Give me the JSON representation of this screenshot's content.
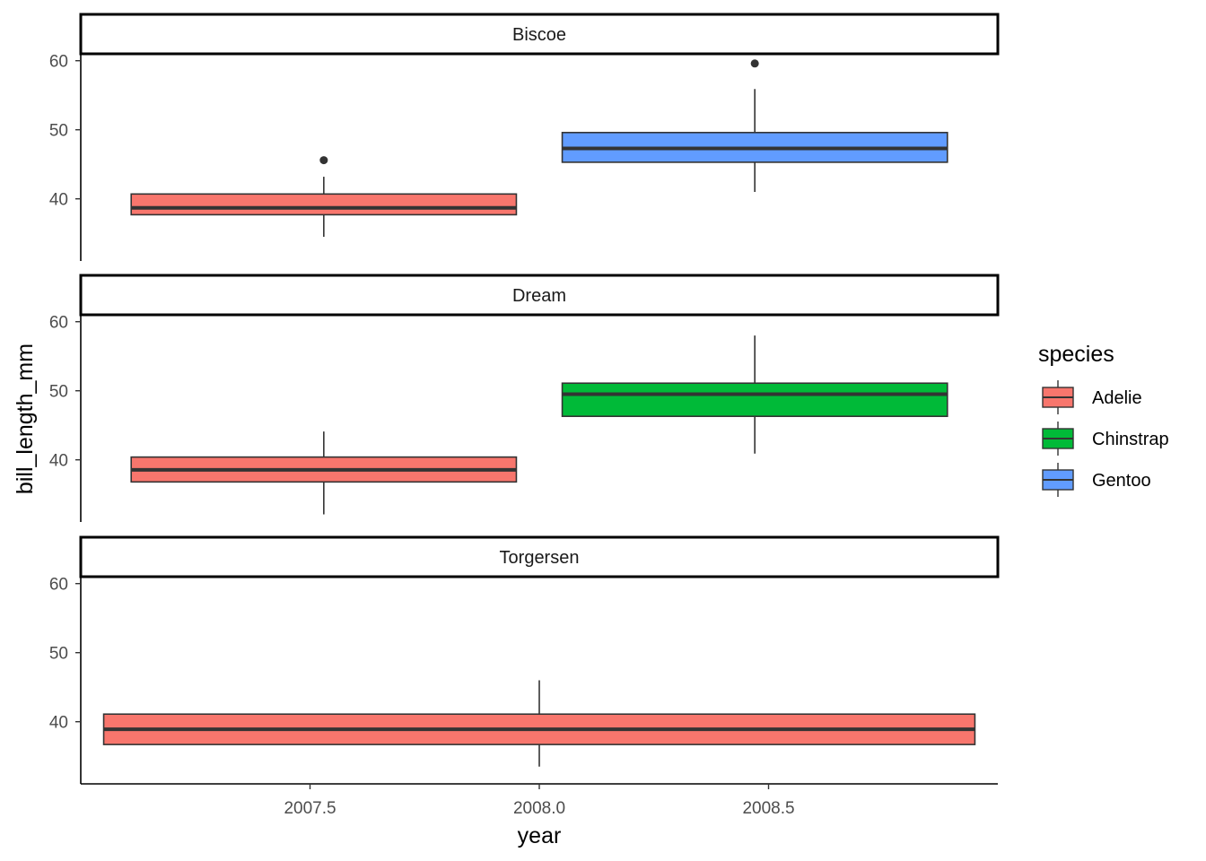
{
  "chart_data": {
    "type": "boxplot",
    "facet_by": "island",
    "xlabel": "year",
    "ylabel": "bill_length_mm",
    "xlim": [
      2007,
      2009
    ],
    "ylim": [
      31,
      61
    ],
    "x_ticks": [
      2007.5,
      2008.0,
      2008.5
    ],
    "x_tick_labels": [
      "2007.5",
      "2008.0",
      "2008.5"
    ],
    "y_ticks": [
      40,
      50,
      60
    ],
    "y_tick_labels": [
      "40",
      "50",
      "60"
    ],
    "grid": false,
    "legend": {
      "title": "species",
      "position": "right",
      "entries": [
        {
          "label": "Adelie",
          "color": "#F8766D"
        },
        {
          "label": "Chinstrap",
          "color": "#00BA38"
        },
        {
          "label": "Gentoo",
          "color": "#619CFF"
        }
      ]
    },
    "panels": [
      {
        "title": "Biscoe",
        "boxes": [
          {
            "species": "Adelie",
            "x_range": [
              2007.11,
              2007.95
            ],
            "lower_whisker": 34.5,
            "q1": 37.7,
            "median": 38.7,
            "q3": 40.7,
            "upper_whisker": 43.2,
            "outliers": [
              45.6
            ]
          },
          {
            "species": "Gentoo",
            "x_range": [
              2008.05,
              2008.89
            ],
            "lower_whisker": 41.0,
            "q1": 45.3,
            "median": 47.3,
            "q3": 49.6,
            "upper_whisker": 55.9,
            "outliers": [
              59.6
            ]
          }
        ]
      },
      {
        "title": "Dream",
        "boxes": [
          {
            "species": "Adelie",
            "x_range": [
              2007.11,
              2007.95
            ],
            "lower_whisker": 32.1,
            "q1": 36.8,
            "median": 38.55,
            "q3": 40.4,
            "upper_whisker": 44.1,
            "outliers": []
          },
          {
            "species": "Chinstrap",
            "x_range": [
              2008.05,
              2008.89
            ],
            "lower_whisker": 40.9,
            "q1": 46.3,
            "median": 49.5,
            "q3": 51.1,
            "upper_whisker": 58.0,
            "outliers": []
          }
        ]
      },
      {
        "title": "Torgersen",
        "boxes": [
          {
            "species": "Adelie",
            "x_range": [
              2007.05,
              2008.95
            ],
            "lower_whisker": 33.5,
            "q1": 36.7,
            "median": 38.9,
            "q3": 41.1,
            "upper_whisker": 46.0,
            "outliers": []
          }
        ]
      }
    ]
  }
}
